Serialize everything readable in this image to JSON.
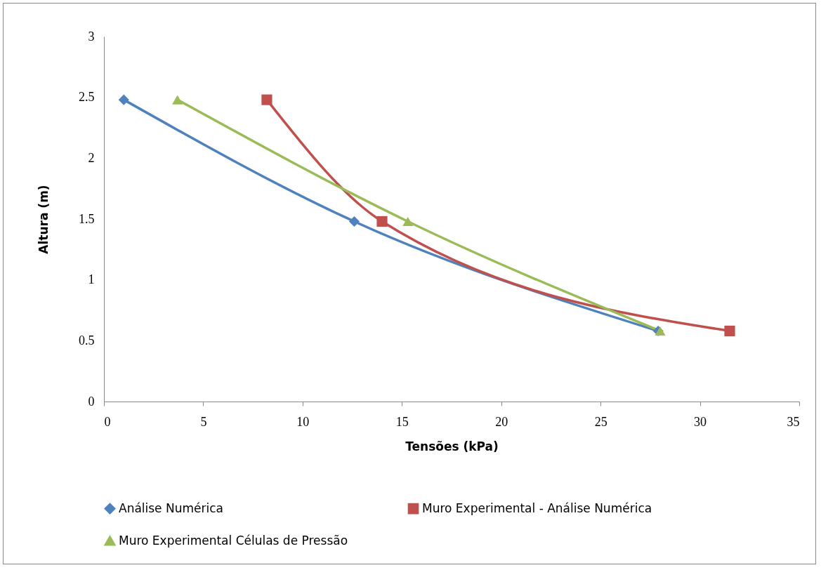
{
  "chart_data": {
    "type": "line",
    "xlabel": "Tensões (kPa)",
    "ylabel": "Altura (m)",
    "xlim": [
      0,
      35
    ],
    "xticks": [
      0,
      5,
      10,
      15,
      20,
      25,
      30,
      35
    ],
    "ylim": [
      0,
      3
    ],
    "yticks": [
      0,
      0.5,
      1,
      1.5,
      2,
      2.5,
      3
    ],
    "grid": false,
    "legend": "bottom",
    "line_style": "solid",
    "series": [
      {
        "name": "Análise Numérica",
        "color": "#4f81bd",
        "marker": "diamond",
        "x": [
          1,
          12.6,
          27.9
        ],
        "values": [
          2.48,
          1.48,
          0.58
        ]
      },
      {
        "name": "Muro Experimental - Análise Numérica",
        "color": "#c0504d",
        "marker": "square",
        "x": [
          8.2,
          14,
          31.5
        ],
        "values": [
          2.48,
          1.48,
          0.58
        ]
      },
      {
        "name": "Muro Experimental Células de Pressão",
        "color": "#9bbb59",
        "marker": "triangle",
        "x": [
          3.7,
          15.3,
          28
        ],
        "values": [
          2.48,
          1.48,
          0.58
        ]
      }
    ]
  }
}
